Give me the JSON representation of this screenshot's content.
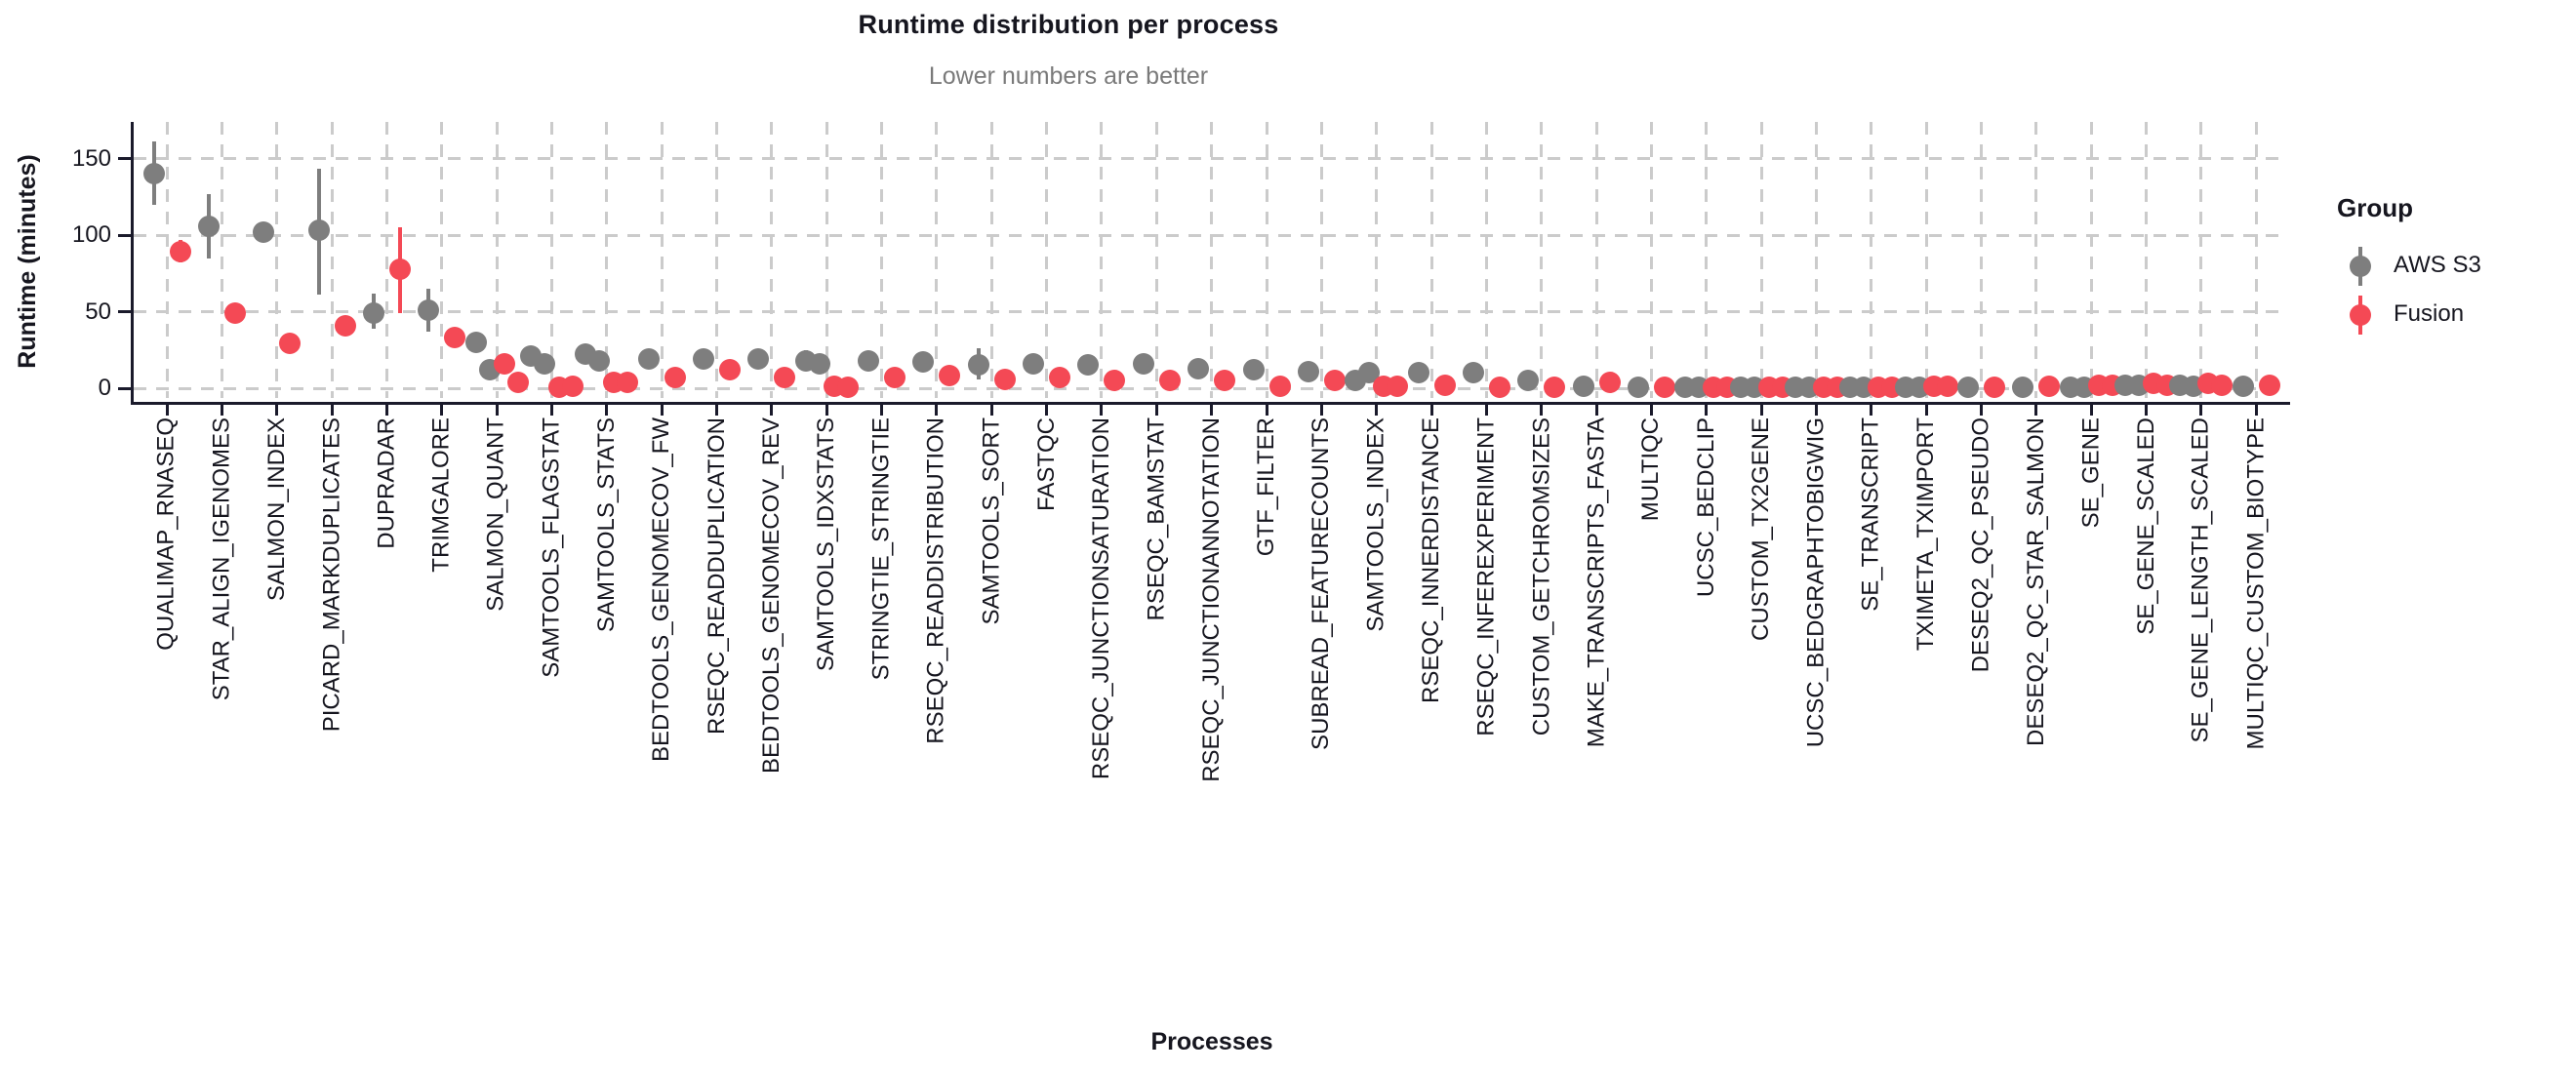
{
  "chart_data": {
    "type": "scatter",
    "subtype": "pointrange-dodged",
    "title": "Runtime distribution per process",
    "subtitle": "Lower numbers are better",
    "xlabel": "Processes",
    "ylabel": "Runtime (minutes)",
    "yticks": [
      0,
      50,
      100,
      150
    ],
    "ytick_labels": [
      "0",
      "50",
      "100",
      "150"
    ],
    "ylim": [
      0,
      175
    ],
    "grid": "dashed-both-axes",
    "legend": {
      "title": "Group",
      "position": "right",
      "items": [
        {
          "label": "AWS S3",
          "color": "#7E7E7E"
        },
        {
          "label": "Fusion",
          "color": "#F44955"
        }
      ]
    },
    "series_colors": {
      "aws_s3": "#7E7E7E",
      "fusion": "#F44955"
    },
    "processes": [
      {
        "name": "QUALIMAP_RNASEQ",
        "aws_s3": {
          "dots": [
            140
          ],
          "range": [
            120,
            161
          ]
        },
        "fusion": {
          "dots": [
            89
          ],
          "range": [
            82,
            97
          ]
        }
      },
      {
        "name": "STAR_ALIGN_IGENOMES",
        "aws_s3": {
          "dots": [
            106
          ],
          "range": [
            85,
            127
          ]
        },
        "fusion": {
          "dots": [
            49
          ],
          "range": null
        }
      },
      {
        "name": "SALMON_INDEX",
        "aws_s3": {
          "dots": [
            102
          ],
          "range": null
        },
        "fusion": {
          "dots": [
            29
          ],
          "range": null
        }
      },
      {
        "name": "PICARD_MARKDUPLICATES",
        "aws_s3": {
          "dots": [
            103
          ],
          "range": [
            61,
            143
          ]
        },
        "fusion": {
          "dots": [
            41
          ],
          "range": null
        }
      },
      {
        "name": "DUPRADAR",
        "aws_s3": {
          "dots": [
            49
          ],
          "range": [
            39,
            62
          ]
        },
        "fusion": {
          "dots": [
            78
          ],
          "range": [
            49,
            105
          ]
        }
      },
      {
        "name": "TRIMGALORE",
        "aws_s3": {
          "dots": [
            51
          ],
          "range": [
            37,
            65
          ]
        },
        "fusion": {
          "dots": [
            33
          ],
          "range": null
        }
      },
      {
        "name": "SALMON_QUANT",
        "aws_s3": {
          "dots": [
            30,
            12
          ],
          "range": null
        },
        "fusion": {
          "dots": [
            16,
            4
          ],
          "range": null
        }
      },
      {
        "name": "SAMTOOLS_FLAGSTAT",
        "aws_s3": {
          "dots": [
            21,
            16
          ],
          "range": null
        },
        "fusion": {
          "dots": [
            0.5,
            1
          ],
          "range": null
        }
      },
      {
        "name": "SAMTOOLS_STATS",
        "aws_s3": {
          "dots": [
            22,
            18
          ],
          "range": null
        },
        "fusion": {
          "dots": [
            4,
            4
          ],
          "range": null
        }
      },
      {
        "name": "BEDTOOLS_GENOMECOV_FW",
        "aws_s3": {
          "dots": [
            19
          ],
          "range": null
        },
        "fusion": {
          "dots": [
            7
          ],
          "range": null
        }
      },
      {
        "name": "RSEQC_READDUPLICATION",
        "aws_s3": {
          "dots": [
            19
          ],
          "range": null
        },
        "fusion": {
          "dots": [
            12
          ],
          "range": null
        }
      },
      {
        "name": "BEDTOOLS_GENOMECOV_REV",
        "aws_s3": {
          "dots": [
            19
          ],
          "range": null
        },
        "fusion": {
          "dots": [
            7
          ],
          "range": null
        }
      },
      {
        "name": "SAMTOOLS_IDXSTATS",
        "aws_s3": {
          "dots": [
            18,
            16
          ],
          "range": [
            12,
            25
          ]
        },
        "fusion": {
          "dots": [
            1,
            0.5
          ],
          "range": null
        }
      },
      {
        "name": "STRINGTIE_STRINGTIE",
        "aws_s3": {
          "dots": [
            18
          ],
          "range": null
        },
        "fusion": {
          "dots": [
            7
          ],
          "range": null
        }
      },
      {
        "name": "RSEQC_READDISTRIBUTION",
        "aws_s3": {
          "dots": [
            17
          ],
          "range": null
        },
        "fusion": {
          "dots": [
            8
          ],
          "range": null
        }
      },
      {
        "name": "SAMTOOLS_SORT",
        "aws_s3": {
          "dots": [
            15
          ],
          "range": [
            6,
            26
          ]
        },
        "fusion": {
          "dots": [
            6
          ],
          "range": null
        }
      },
      {
        "name": "FASTQC",
        "aws_s3": {
          "dots": [
            16
          ],
          "range": null
        },
        "fusion": {
          "dots": [
            7
          ],
          "range": null
        }
      },
      {
        "name": "RSEQC_JUNCTIONSATURATION",
        "aws_s3": {
          "dots": [
            15
          ],
          "range": null
        },
        "fusion": {
          "dots": [
            5
          ],
          "range": null
        }
      },
      {
        "name": "RSEQC_BAMSTAT",
        "aws_s3": {
          "dots": [
            16
          ],
          "range": null
        },
        "fusion": {
          "dots": [
            5
          ],
          "range": null
        }
      },
      {
        "name": "RSEQC_JUNCTIONANNOTATION",
        "aws_s3": {
          "dots": [
            13
          ],
          "range": null
        },
        "fusion": {
          "dots": [
            5
          ],
          "range": null
        }
      },
      {
        "name": "GTF_FILTER",
        "aws_s3": {
          "dots": [
            12
          ],
          "range": null
        },
        "fusion": {
          "dots": [
            1
          ],
          "range": null
        }
      },
      {
        "name": "SUBREAD_FEATURECOUNTS",
        "aws_s3": {
          "dots": [
            11
          ],
          "range": null
        },
        "fusion": {
          "dots": [
            5
          ],
          "range": null
        }
      },
      {
        "name": "SAMTOOLS_INDEX",
        "aws_s3": {
          "dots": [
            5,
            10
          ],
          "range": null
        },
        "fusion": {
          "dots": [
            1,
            1
          ],
          "range": null
        }
      },
      {
        "name": "RSEQC_INNERDISTANCE",
        "aws_s3": {
          "dots": [
            10
          ],
          "range": null
        },
        "fusion": {
          "dots": [
            2
          ],
          "range": null
        }
      },
      {
        "name": "RSEQC_INFEREXPERIMENT",
        "aws_s3": {
          "dots": [
            10
          ],
          "range": null
        },
        "fusion": {
          "dots": [
            0.5
          ],
          "range": null
        }
      },
      {
        "name": "CUSTOM_GETCHROMSIZES",
        "aws_s3": {
          "dots": [
            5
          ],
          "range": null
        },
        "fusion": {
          "dots": [
            0.5
          ],
          "range": null
        }
      },
      {
        "name": "MAKE_TRANSCRIPTS_FASTA",
        "aws_s3": {
          "dots": [
            1
          ],
          "range": null
        },
        "fusion": {
          "dots": [
            4
          ],
          "range": null
        }
      },
      {
        "name": "MULTIQC",
        "aws_s3": {
          "dots": [
            0.5
          ],
          "range": null
        },
        "fusion": {
          "dots": [
            0.5
          ],
          "range": null
        }
      },
      {
        "name": "UCSC_BEDCLIP",
        "aws_s3": {
          "dots": [
            0.5,
            0.5
          ],
          "range": null
        },
        "fusion": {
          "dots": [
            0.5,
            0.5
          ],
          "range": null
        }
      },
      {
        "name": "CUSTOM_TX2GENE",
        "aws_s3": {
          "dots": [
            0.5,
            0.5
          ],
          "range": null
        },
        "fusion": {
          "dots": [
            0.5,
            0.5
          ],
          "range": null
        }
      },
      {
        "name": "UCSC_BEDGRAPHTOBIGWIG",
        "aws_s3": {
          "dots": [
            0.5,
            0.5
          ],
          "range": null
        },
        "fusion": {
          "dots": [
            0.5,
            0.5
          ],
          "range": null
        }
      },
      {
        "name": "SE_TRANSCRIPT",
        "aws_s3": {
          "dots": [
            0.5,
            0.5
          ],
          "range": null
        },
        "fusion": {
          "dots": [
            0.5,
            0.5
          ],
          "range": null
        }
      },
      {
        "name": "TXIMETA_TXIMPORT",
        "aws_s3": {
          "dots": [
            0.5,
            0.5
          ],
          "range": null
        },
        "fusion": {
          "dots": [
            1,
            1
          ],
          "range": null
        }
      },
      {
        "name": "DESEQ2_QC_PSEUDO",
        "aws_s3": {
          "dots": [
            0.5
          ],
          "range": null
        },
        "fusion": {
          "dots": [
            0.5
          ],
          "range": null
        }
      },
      {
        "name": "DESEQ2_QC_STAR_SALMON",
        "aws_s3": {
          "dots": [
            0.5
          ],
          "range": null
        },
        "fusion": {
          "dots": [
            1
          ],
          "range": null
        }
      },
      {
        "name": "SE_GENE",
        "aws_s3": {
          "dots": [
            0.5,
            0.5
          ],
          "range": null
        },
        "fusion": {
          "dots": [
            2,
            2
          ],
          "range": null
        }
      },
      {
        "name": "SE_GENE_SCALED",
        "aws_s3": {
          "dots": [
            2,
            2
          ],
          "range": null
        },
        "fusion": {
          "dots": [
            3,
            2
          ],
          "range": null
        }
      },
      {
        "name": "SE_GENE_LENGTH_SCALED",
        "aws_s3": {
          "dots": [
            2,
            1
          ],
          "range": null
        },
        "fusion": {
          "dots": [
            3,
            2
          ],
          "range": null
        }
      },
      {
        "name": "MULTIQC_CUSTOM_BIOTYPE",
        "aws_s3": {
          "dots": [
            1
          ],
          "range": null
        },
        "fusion": {
          "dots": [
            2
          ],
          "range": null
        }
      }
    ]
  }
}
